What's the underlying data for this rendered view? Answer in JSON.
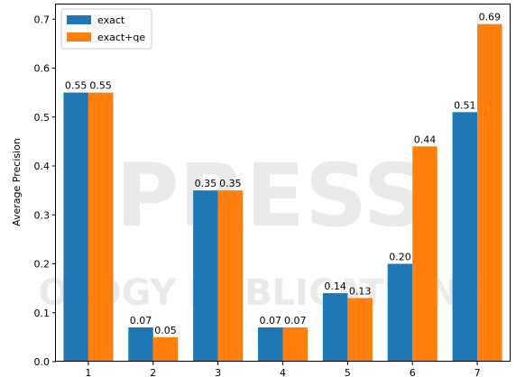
{
  "chart_data": {
    "type": "bar",
    "categories": [
      "1",
      "2",
      "3",
      "4",
      "5",
      "6",
      "7"
    ],
    "series": [
      {
        "name": "exact",
        "values": [
          0.55,
          0.07,
          0.35,
          0.07,
          0.14,
          0.2,
          0.51
        ],
        "color": "#1f77b4"
      },
      {
        "name": "exact+qe",
        "values": [
          0.55,
          0.05,
          0.35,
          0.07,
          0.13,
          0.44,
          0.69
        ],
        "color": "#ff7f0e"
      }
    ],
    "data_labels": [
      [
        "0.55",
        "0.07",
        "0.35",
        "0.07",
        "0.14",
        "0.20",
        "0.51"
      ],
      [
        "0.55",
        "0.05",
        "0.35",
        "0.07",
        "0.13",
        "0.44",
        "0.69"
      ]
    ],
    "title": "",
    "xlabel": "",
    "ylabel": "Average Precision",
    "ylim": [
      0,
      0.73
    ],
    "yticks": [
      "0.0",
      "0.1",
      "0.2",
      "0.3",
      "0.4",
      "0.5",
      "0.6",
      "0.7"
    ],
    "grid": false,
    "legend_position": "top-left"
  },
  "watermark": {
    "line1": "PRESS",
    "line2": "OLOGY PUBLICATIONS"
  }
}
